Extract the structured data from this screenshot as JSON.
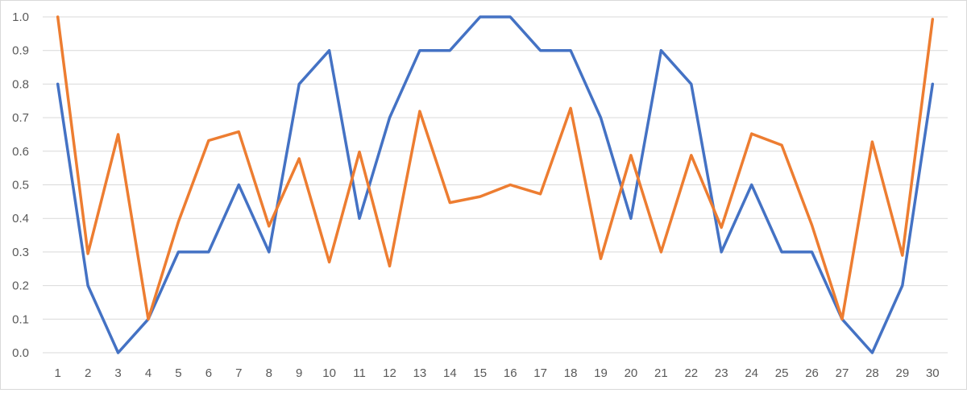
{
  "chart_data": {
    "type": "line",
    "x": [
      "1",
      "2",
      "3",
      "4",
      "5",
      "6",
      "7",
      "8",
      "9",
      "10",
      "11",
      "12",
      "13",
      "14",
      "15",
      "16",
      "17",
      "18",
      "19",
      "20",
      "21",
      "22",
      "23",
      "24",
      "25",
      "26",
      "27",
      "28",
      "29",
      "30"
    ],
    "ylim": [
      0,
      1
    ],
    "yticks": [
      "0.0",
      "0.1",
      "0.2",
      "0.3",
      "0.4",
      "0.5",
      "0.6",
      "0.7",
      "0.8",
      "0.9",
      "1.0"
    ],
    "grid": true,
    "legend": "none",
    "series": [
      {
        "color": "#4472c4",
        "values": [
          0.8,
          0.2,
          0.0,
          0.1,
          0.3,
          0.3,
          0.5,
          0.3,
          0.8,
          0.9,
          0.4,
          0.7,
          0.9,
          0.9,
          1.0,
          1.0,
          0.9,
          0.9,
          0.7,
          0.4,
          0.9,
          0.8,
          0.3,
          0.5,
          0.3,
          0.3,
          0.1,
          0.0,
          0.2,
          0.8
        ]
      },
      {
        "color": "#ed7d31",
        "values": [
          1.0,
          0.295,
          0.65,
          0.1,
          0.39,
          0.632,
          0.658,
          0.377,
          0.578,
          0.27,
          0.598,
          0.258,
          0.719,
          0.447,
          0.465,
          0.5,
          0.473,
          0.728,
          0.28,
          0.588,
          0.3,
          0.588,
          0.373,
          0.652,
          0.618,
          0.38,
          0.1,
          0.628,
          0.29,
          0.993
        ]
      }
    ]
  }
}
